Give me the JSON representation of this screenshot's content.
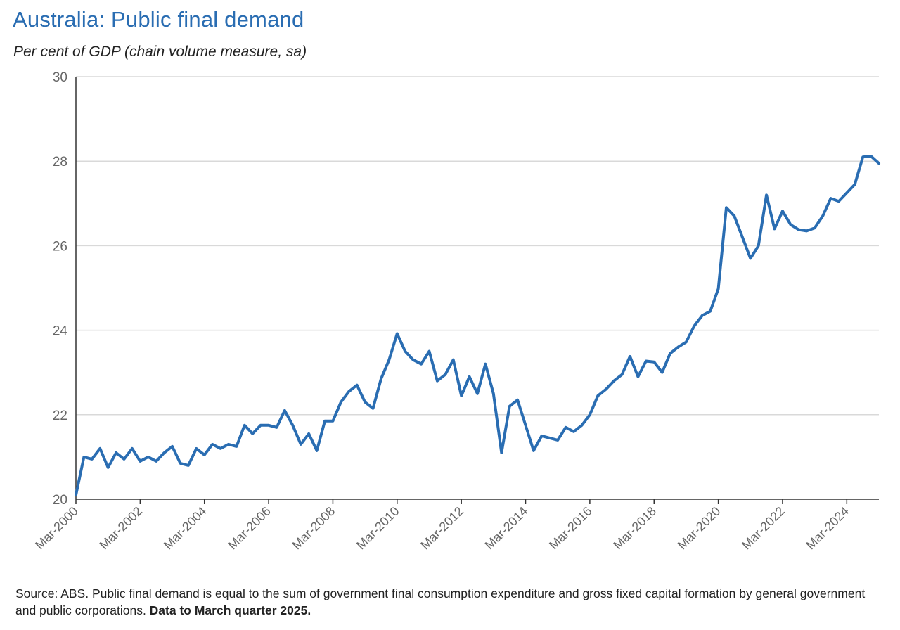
{
  "chart_data": {
    "type": "line",
    "title": "Australia: Public final demand",
    "subtitle": "Per cent of GDP (chain volume measure, sa)",
    "xlabel": "",
    "ylabel": "",
    "ylim": [
      20,
      30
    ],
    "yticks": [
      20,
      22,
      24,
      26,
      28,
      30
    ],
    "grid": true,
    "x_start": "Mar-2000",
    "x_end": "Mar-2025",
    "frequency": "quarterly",
    "x_tick_labels": [
      "Mar-2000",
      "Mar-2002",
      "Mar-2004",
      "Mar-2006",
      "Mar-2008",
      "Mar-2010",
      "Mar-2012",
      "Mar-2014",
      "Mar-2016",
      "Mar-2018",
      "Mar-2020",
      "Mar-2022",
      "Mar-2024"
    ],
    "series": [
      {
        "name": "Public final demand",
        "color": "#2a6db2",
        "values": [
          20.1,
          21.0,
          20.95,
          21.2,
          20.75,
          21.1,
          20.95,
          21.2,
          20.9,
          21.0,
          20.9,
          21.1,
          21.25,
          20.85,
          20.8,
          21.2,
          21.05,
          21.3,
          21.2,
          21.3,
          21.25,
          21.75,
          21.55,
          21.75,
          21.75,
          21.7,
          22.1,
          21.75,
          21.3,
          21.55,
          21.15,
          21.85,
          21.85,
          22.3,
          22.55,
          22.7,
          22.3,
          22.15,
          22.85,
          23.3,
          23.92,
          23.5,
          23.3,
          23.2,
          23.5,
          22.8,
          22.95,
          23.3,
          22.45,
          22.9,
          22.5,
          23.2,
          22.5,
          21.1,
          22.2,
          22.35,
          21.75,
          21.15,
          21.5,
          21.45,
          21.4,
          21.7,
          21.6,
          21.75,
          22.0,
          22.45,
          22.6,
          22.8,
          22.95,
          23.38,
          22.9,
          23.27,
          23.25,
          23.0,
          23.45,
          23.6,
          23.72,
          24.1,
          24.35,
          24.45,
          24.98,
          26.9,
          26.7,
          26.2,
          25.7,
          26.0,
          27.2,
          26.4,
          26.82,
          26.5,
          26.38,
          26.35,
          26.42,
          26.7,
          27.12,
          27.05,
          27.25,
          27.45,
          28.1,
          28.12,
          27.95
        ]
      }
    ]
  },
  "footnote": {
    "text": "Source: ABS. Public final demand is equal to the sum of government final consumption expenditure and gross fixed capital formation by general government and public corporations. ",
    "bold": "Data to March quarter 2025."
  }
}
